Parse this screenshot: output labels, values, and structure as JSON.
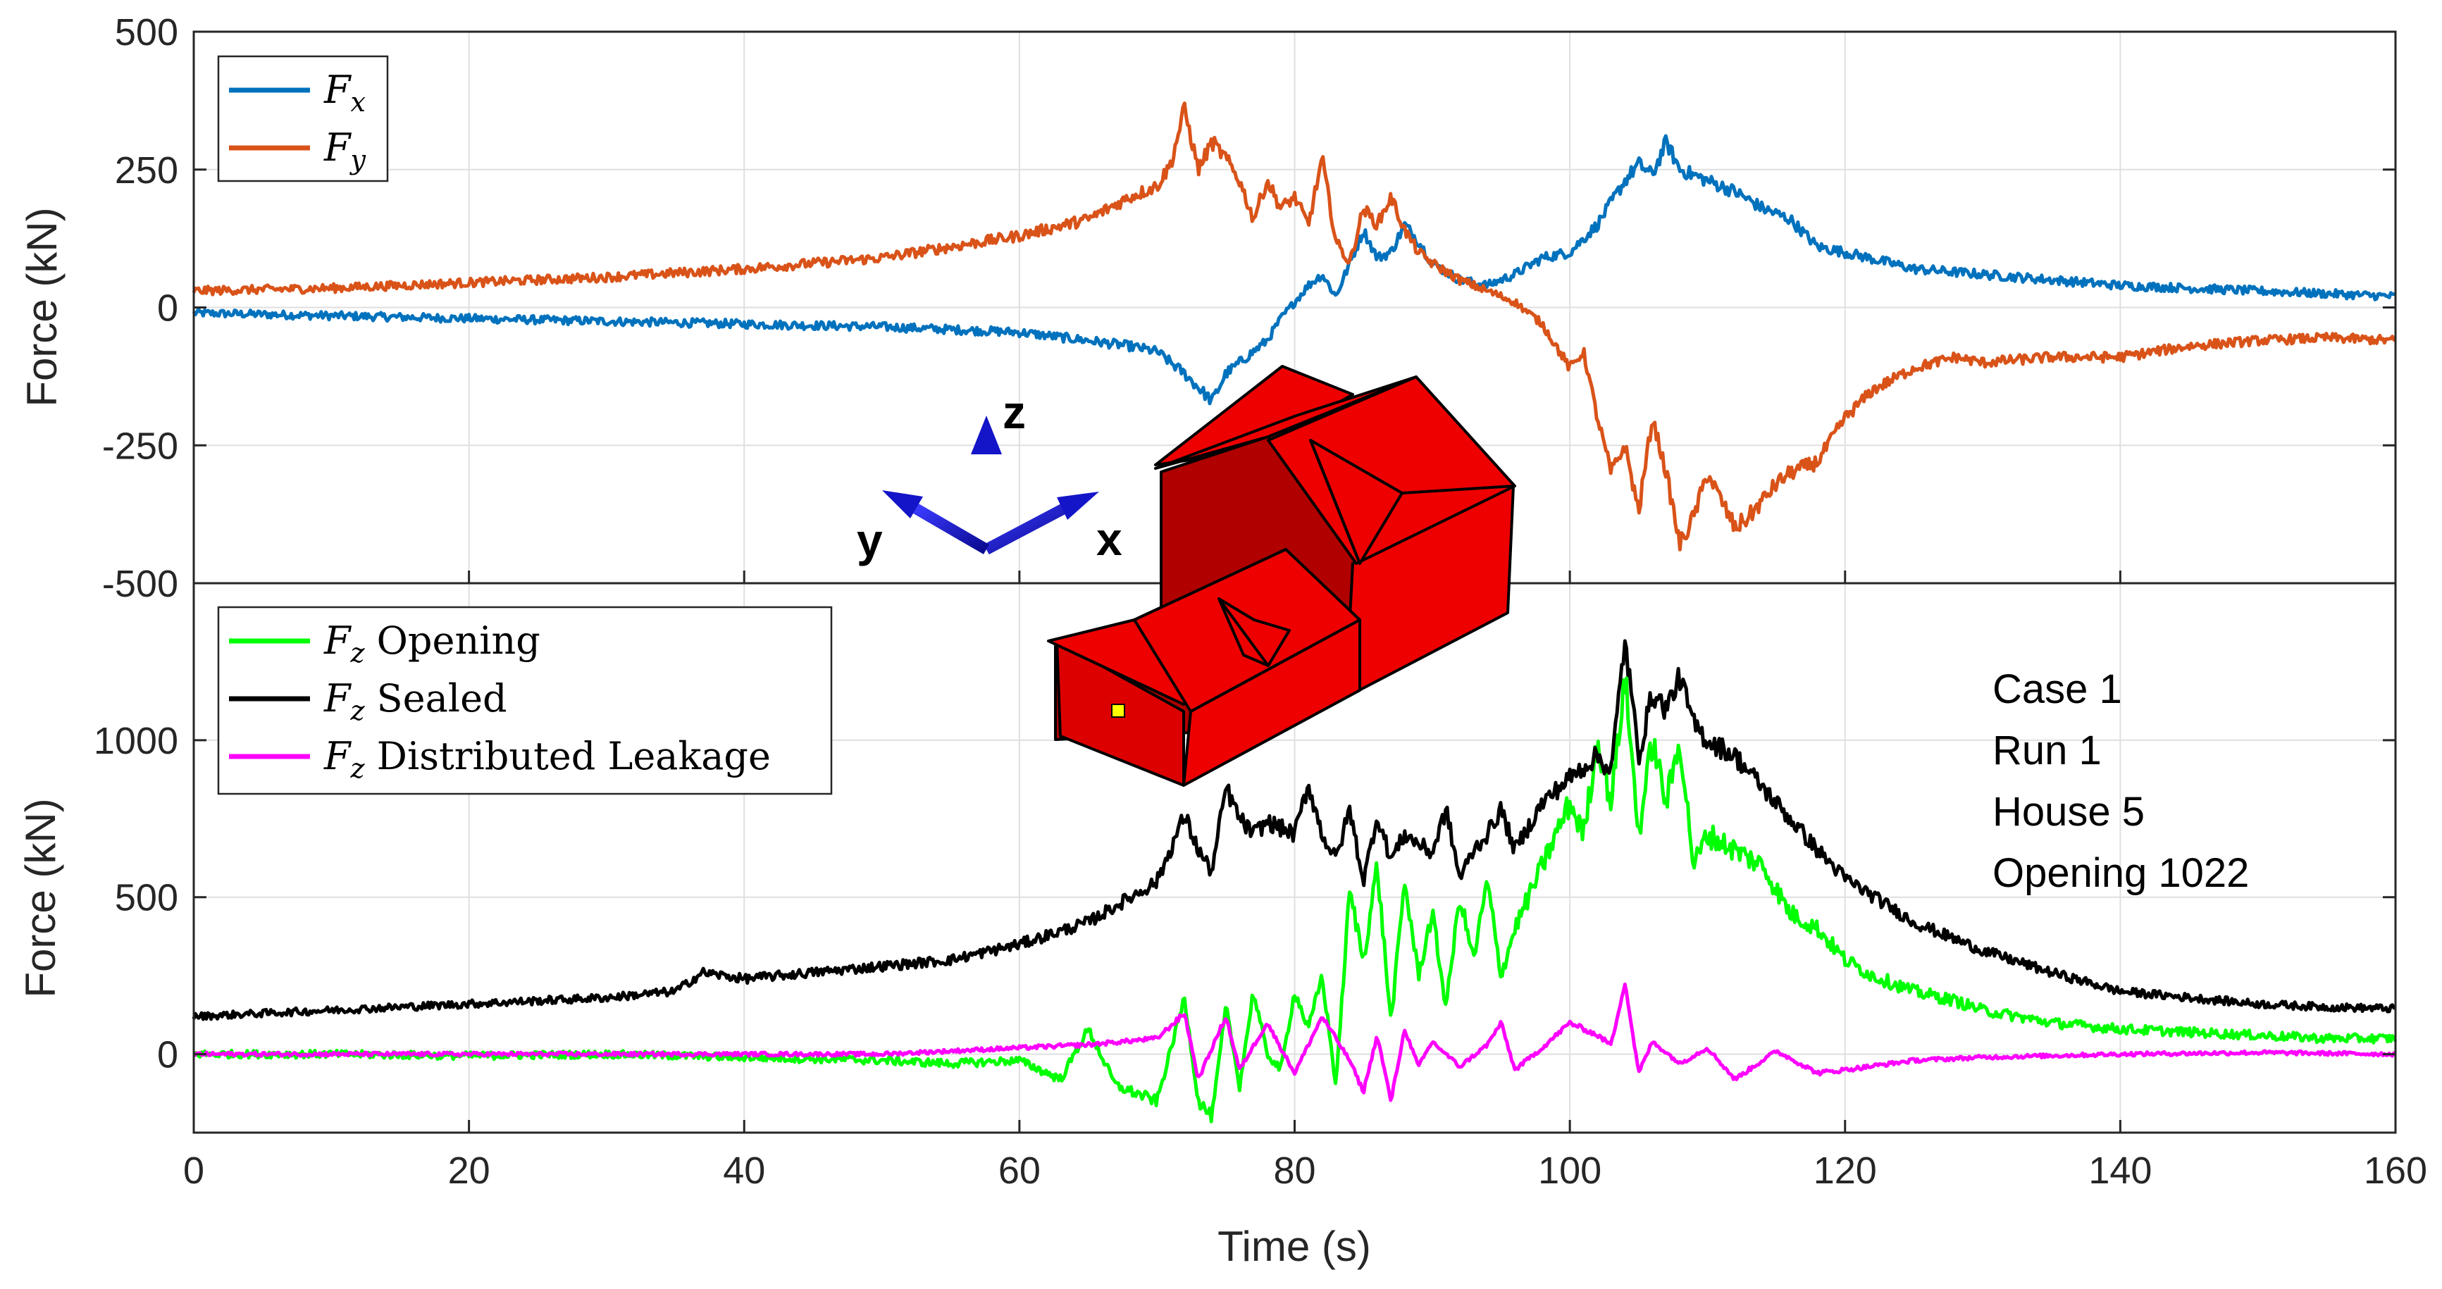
{
  "chart_data": [
    {
      "type": "line",
      "panel": "top",
      "ylabel": "Force (kN)",
      "xlabel": "",
      "xlim": [
        0,
        160
      ],
      "ylim": [
        -500,
        500
      ],
      "yticks": [
        500,
        250,
        0,
        -250,
        -500
      ],
      "ytick_labels": [
        "500",
        "250",
        "0",
        "-250",
        "-500"
      ],
      "grid": true,
      "legend_position": "top-left",
      "series": [
        {
          "name": "Fx",
          "legend_base": "F",
          "legend_sub": "x",
          "legend_rest": "",
          "color": "#0072BD",
          "noise": 7,
          "x": [
            0,
            10,
            20,
            30,
            40,
            50,
            55,
            60,
            65,
            68,
            70,
            72,
            74,
            75,
            77,
            78,
            79,
            80,
            81,
            82,
            83,
            84,
            85,
            86,
            87,
            88,
            89,
            90,
            92,
            94,
            96,
            98,
            100,
            102,
            104,
            105,
            106,
            107,
            108,
            110,
            112,
            114,
            116,
            118,
            120,
            125,
            130,
            135,
            140,
            145,
            150,
            155,
            160
          ],
          "values": [
            -10,
            -15,
            -20,
            -25,
            -30,
            -35,
            -40,
            -45,
            -60,
            -70,
            -80,
            -120,
            -170,
            -120,
            -80,
            -60,
            -20,
            10,
            40,
            60,
            20,
            80,
            140,
            90,
            100,
            150,
            120,
            80,
            50,
            40,
            60,
            90,
            100,
            150,
            230,
            260,
            240,
            300,
            250,
            230,
            210,
            180,
            160,
            110,
            100,
            70,
            60,
            50,
            40,
            35,
            30,
            25,
            20
          ]
        },
        {
          "name": "Fy",
          "legend_base": "F",
          "legend_sub": "y",
          "legend_rest": "",
          "color": "#D95319",
          "noise": 7,
          "x": [
            0,
            10,
            20,
            30,
            40,
            50,
            55,
            60,
            65,
            68,
            70,
            71,
            72,
            73,
            74,
            75,
            76,
            77,
            78,
            79,
            80,
            81,
            82,
            83,
            84,
            85,
            86,
            87,
            88,
            89,
            90,
            92,
            94,
            96,
            98,
            100,
            101,
            102,
            103,
            104,
            105,
            106,
            107,
            108,
            109,
            110,
            111,
            112,
            113,
            114,
            115,
            116,
            118,
            120,
            122,
            125,
            128,
            130,
            135,
            140,
            145,
            150,
            155,
            160
          ],
          "values": [
            30,
            35,
            45,
            55,
            70,
            90,
            110,
            130,
            160,
            200,
            220,
            260,
            360,
            250,
            300,
            270,
            230,
            160,
            230,
            180,
            200,
            150,
            270,
            120,
            80,
            180,
            150,
            200,
            140,
            100,
            80,
            50,
            30,
            10,
            -30,
            -110,
            -80,
            -200,
            -300,
            -250,
            -370,
            -200,
            -300,
            -430,
            -380,
            -300,
            -350,
            -400,
            -380,
            -350,
            -320,
            -300,
            -280,
            -200,
            -150,
            -110,
            -90,
            -100,
            -90,
            -90,
            -70,
            -60,
            -55,
            -60
          ]
        }
      ]
    },
    {
      "type": "line",
      "panel": "bottom",
      "ylabel": "Force (kN)",
      "xlabel": "Time (s)",
      "xlim": [
        0,
        160
      ],
      "ylim": [
        -250,
        1500
      ],
      "yticks": [
        1000,
        500,
        0
      ],
      "ytick_labels": [
        "1000",
        "500",
        "0"
      ],
      "xticks": [
        0,
        20,
        40,
        60,
        80,
        100,
        120,
        140,
        160
      ],
      "xtick_labels": [
        "0",
        "20",
        "40",
        "60",
        "80",
        "100",
        "120",
        "140",
        "160"
      ],
      "grid": true,
      "legend_position": "top-left",
      "series": [
        {
          "name": "Fz Opening",
          "legend_base": "F",
          "legend_sub": "z",
          "legend_rest": " Opening",
          "color": "#00FF00",
          "noise": 12,
          "x": [
            0,
            10,
            20,
            30,
            40,
            50,
            55,
            60,
            63,
            65,
            67,
            70,
            72,
            73,
            74,
            75,
            76,
            77,
            78,
            79,
            80,
            81,
            82,
            83,
            84,
            85,
            86,
            87,
            88,
            89,
            90,
            91,
            92,
            93,
            94,
            95,
            96,
            98,
            100,
            101,
            102,
            103,
            104,
            105,
            106,
            107,
            108,
            109,
            110,
            112,
            114,
            116,
            118,
            120,
            122,
            125,
            128,
            130,
            135,
            140,
            145,
            150,
            155,
            160
          ],
          "values": [
            0,
            0,
            -5,
            0,
            -10,
            -20,
            -30,
            -20,
            -80,
            80,
            -100,
            -150,
            180,
            -150,
            -200,
            150,
            -100,
            200,
            0,
            -50,
            200,
            80,
            250,
            -100,
            520,
            300,
            600,
            100,
            550,
            250,
            450,
            150,
            500,
            300,
            550,
            250,
            400,
            600,
            800,
            700,
            1000,
            800,
            1200,
            700,
            1000,
            800,
            1000,
            600,
            700,
            650,
            600,
            450,
            400,
            300,
            250,
            200,
            170,
            140,
            100,
            80,
            70,
            60,
            50,
            50
          ]
        },
        {
          "name": "Fz Sealed",
          "legend_base": "F",
          "legend_sub": "z",
          "legend_rest": " Sealed",
          "color": "#000000",
          "noise": 8,
          "x": [
            0,
            10,
            20,
            30,
            35,
            37,
            40,
            45,
            50,
            55,
            60,
            65,
            70,
            72,
            73,
            74,
            75,
            76,
            77,
            78,
            80,
            81,
            82,
            83,
            84,
            85,
            86,
            87,
            88,
            90,
            91,
            92,
            93,
            94,
            95,
            96,
            98,
            100,
            102,
            103,
            104,
            105,
            106,
            107,
            108,
            109,
            110,
            112,
            114,
            116,
            118,
            120,
            125,
            130,
            135,
            140,
            145,
            150,
            155,
            160
          ],
          "values": [
            120,
            140,
            160,
            180,
            200,
            260,
            240,
            260,
            280,
            300,
            350,
            420,
            550,
            760,
            650,
            580,
            850,
            750,
            700,
            740,
            700,
            860,
            700,
            620,
            780,
            550,
            760,
            620,
            700,
            640,
            780,
            560,
            650,
            700,
            780,
            650,
            800,
            880,
            950,
            900,
            1320,
            950,
            1150,
            1100,
            1200,
            1050,
            1000,
            950,
            850,
            750,
            650,
            560,
            420,
            330,
            260,
            200,
            180,
            160,
            150,
            145
          ]
        },
        {
          "name": "Fz Distributed Leakage",
          "legend_base": "F",
          "legend_sub": "z",
          "legend_rest": " Distributed Leakage",
          "color": "#FF00FF",
          "noise": 6,
          "x": [
            0,
            10,
            20,
            30,
            40,
            50,
            60,
            65,
            70,
            72,
            73,
            74,
            75,
            76,
            78,
            80,
            82,
            84,
            85,
            86,
            87,
            88,
            89,
            90,
            92,
            94,
            95,
            96,
            98,
            100,
            102,
            103,
            104,
            105,
            106,
            108,
            110,
            112,
            115,
            118,
            120,
            125,
            130,
            140,
            150,
            160
          ],
          "values": [
            0,
            0,
            0,
            0,
            0,
            0,
            20,
            30,
            50,
            130,
            -80,
            20,
            120,
            -50,
            100,
            -60,
            120,
            -20,
            -120,
            60,
            -150,
            80,
            -40,
            40,
            -40,
            30,
            100,
            -50,
            20,
            100,
            60,
            30,
            230,
            -60,
            40,
            -30,
            20,
            -80,
            10,
            -60,
            -50,
            -20,
            -10,
            0,
            5,
            0
          ]
        }
      ]
    }
  ],
  "axes_overlay": {
    "z_label": "z",
    "x_label": "x",
    "y_label": "y",
    "arrow_color": "#1414C8"
  },
  "house": {
    "fill": "#EE0000",
    "shade": "#B00000",
    "window": "#FFFF00"
  },
  "annotation": [
    "Case 1",
    "Run 1",
    "House 5",
    "Opening 1022"
  ]
}
